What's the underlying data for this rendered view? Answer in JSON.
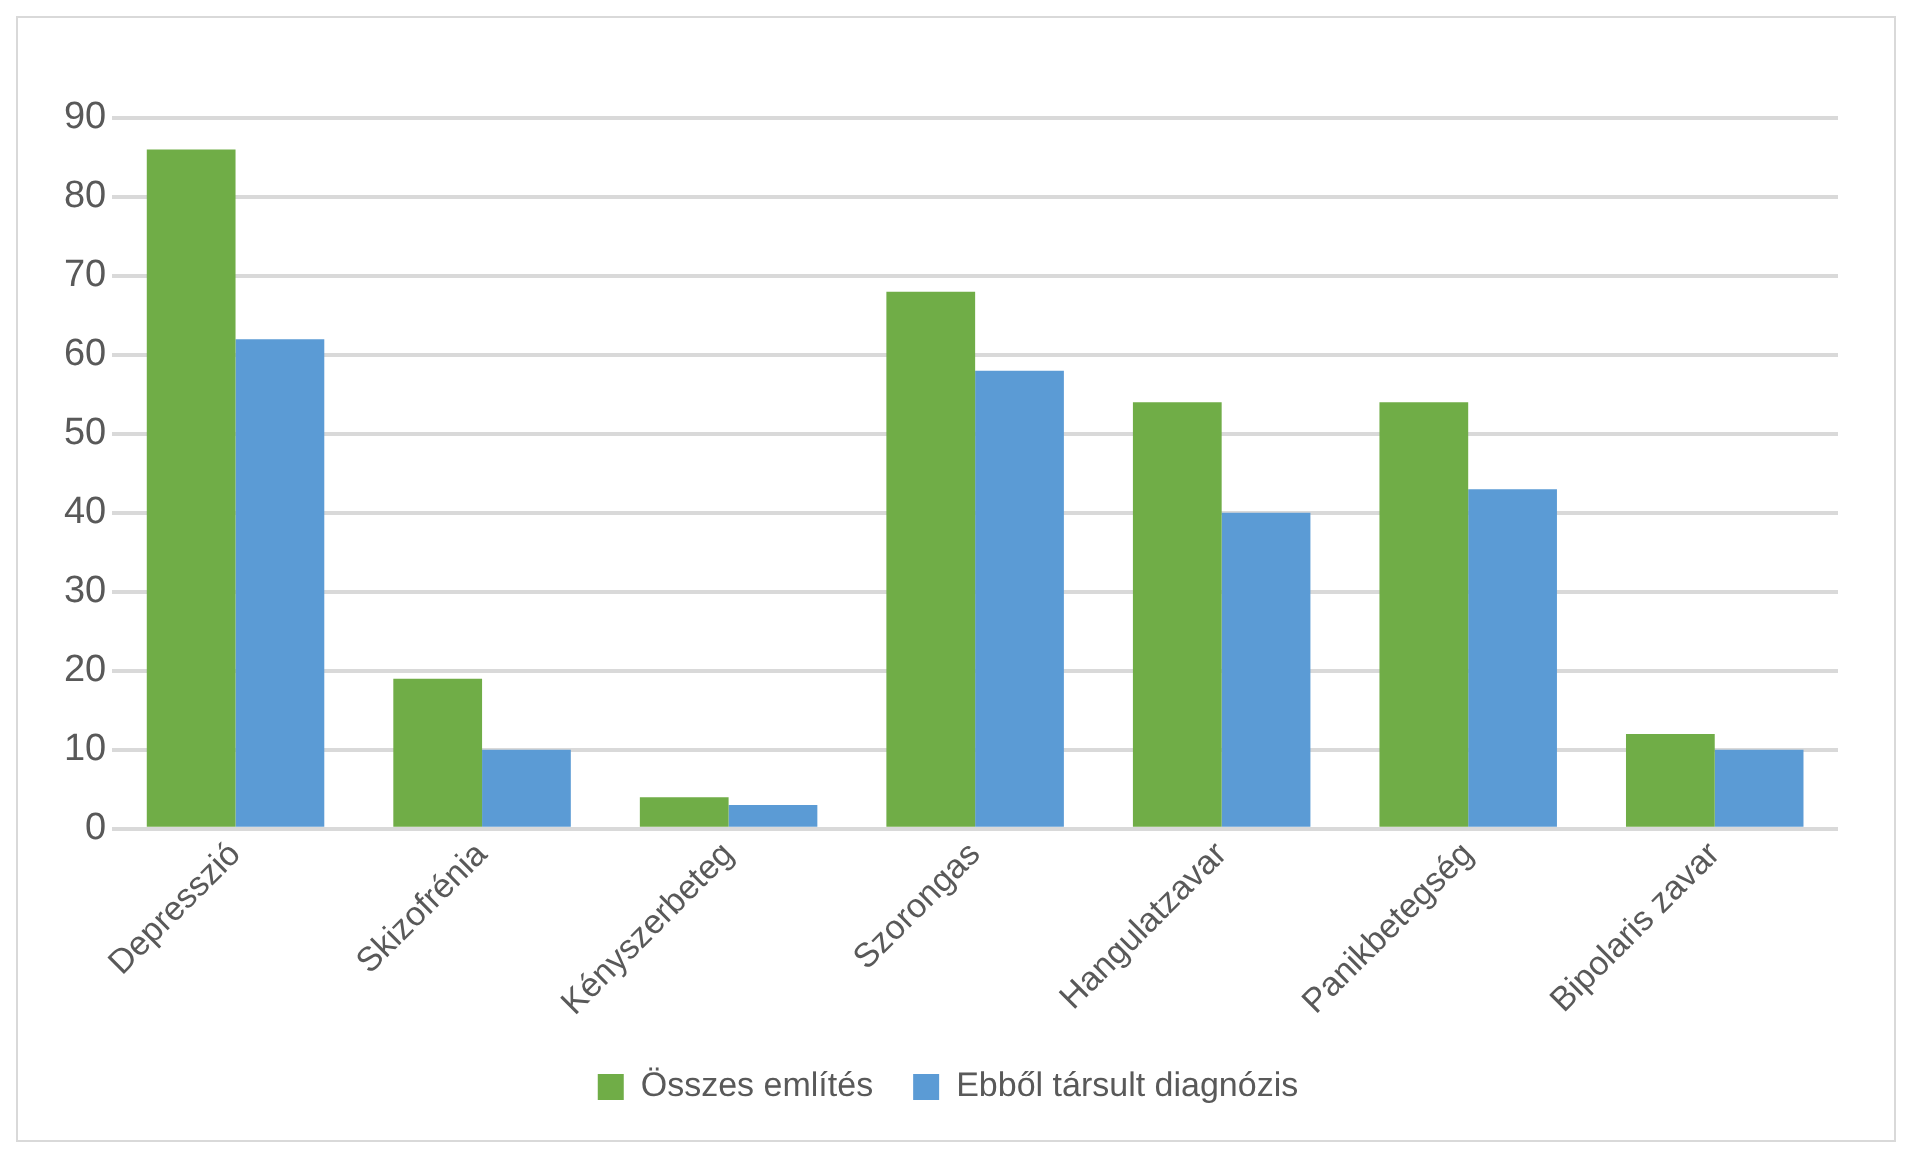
{
  "chart_data": {
    "type": "bar",
    "categories": [
      "Depresszió",
      "Skizofrénia",
      "Kényszerbeteg",
      "Szorongas",
      "Hangulatzavar",
      "Panikbetegség",
      "Bipolaris zavar"
    ],
    "series": [
      {
        "name": "Összes említés",
        "color": "#70ad47",
        "values": [
          86,
          19,
          4,
          68,
          54,
          54,
          12
        ]
      },
      {
        "name": "Ebből társult diagnózis",
        "color": "#5b9bd5",
        "values": [
          62,
          10,
          3,
          58,
          40,
          43,
          10
        ]
      }
    ],
    "ylim": [
      0,
      90
    ],
    "yticks": [
      0,
      10,
      20,
      30,
      40,
      50,
      60,
      70,
      80,
      90
    ],
    "grid": "y",
    "legend": "bottom"
  }
}
